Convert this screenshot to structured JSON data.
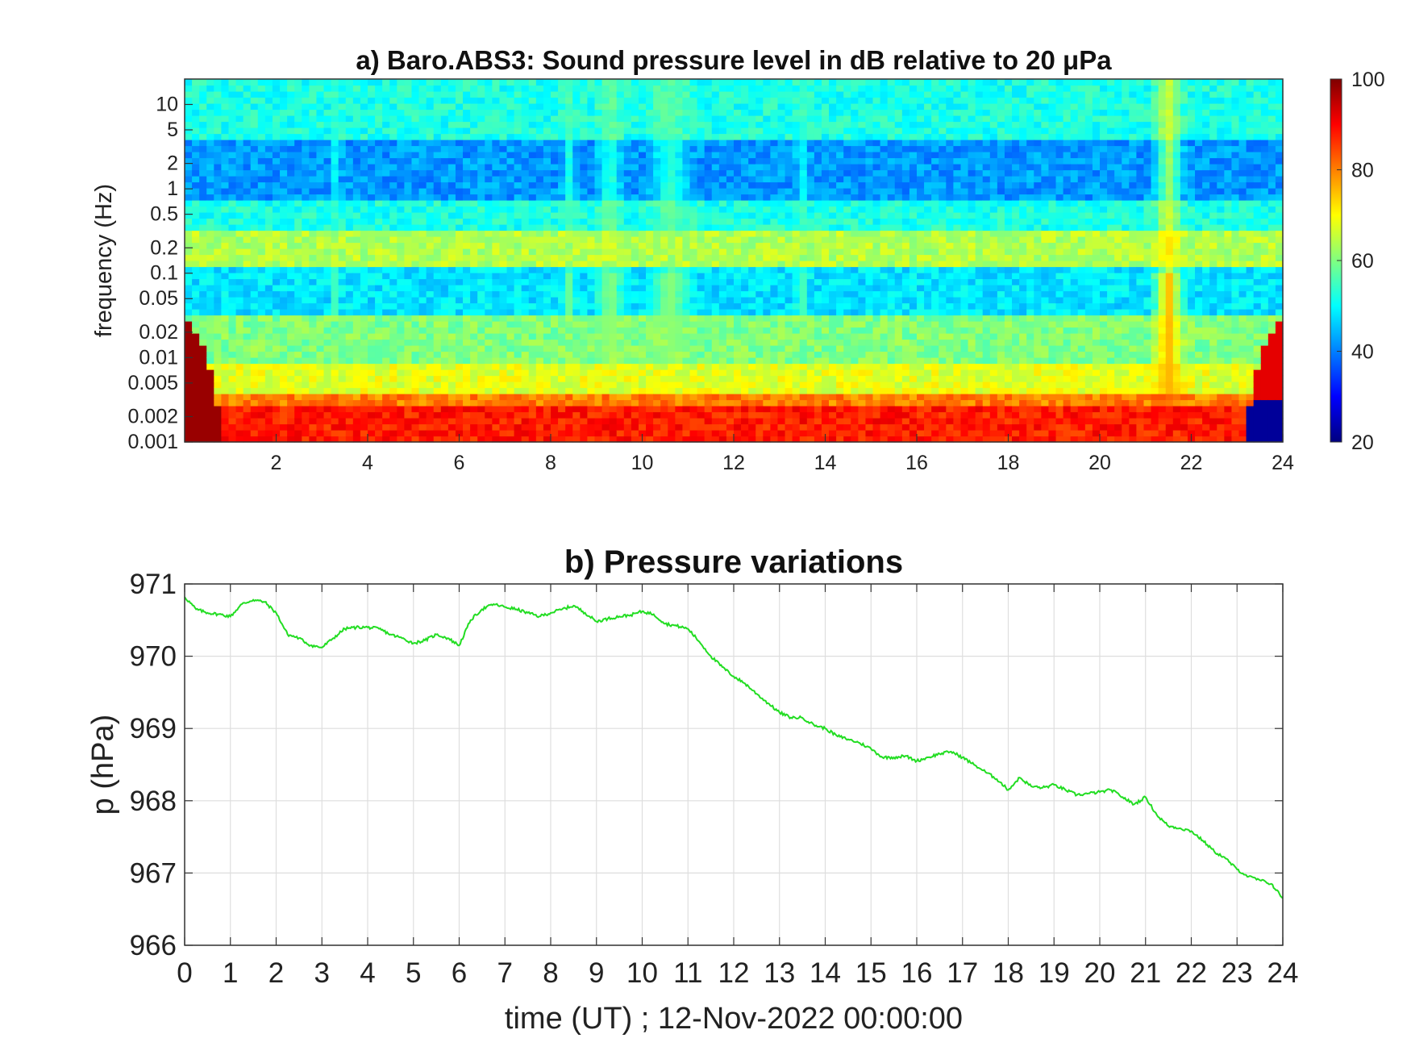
{
  "figure": {
    "panel_a": {
      "title": "a) Baro.ABS3: Sound pressure level in dB relative to 20 μPa",
      "ylabel": "frequency (Hz)"
    },
    "panel_b": {
      "title": "b) Pressure variations",
      "ylabel": "p (hPa)",
      "xlabel": "time (UT) ; 12-Nov-2022 00:00:00"
    }
  },
  "chart_data": [
    {
      "type": "heatmap",
      "title": "a) Baro.ABS3: Sound pressure level in dB relative to 20 μPa",
      "xlabel": "",
      "ylabel": "frequency (Hz)",
      "xlim": [
        0,
        24
      ],
      "ylim": [
        0.001,
        20
      ],
      "y_scale": "log",
      "x_ticks": [
        "2",
        "4",
        "6",
        "8",
        "10",
        "12",
        "14",
        "16",
        "18",
        "20",
        "22",
        "24"
      ],
      "y_ticks": [
        "0.001",
        "0.002",
        "0.005",
        "0.01",
        "0.02",
        "0.05",
        "0.1",
        "0.2",
        "0.5",
        "1",
        "2",
        "5",
        "10"
      ],
      "colormap": "jet",
      "colorbar": {
        "min": 20,
        "max": 100,
        "ticks": [
          "20",
          "40",
          "60",
          "80",
          "100"
        ],
        "placement": "right"
      },
      "frequency_bands_db": [
        {
          "fmin": 0.001,
          "fmax": 0.0025,
          "level": 88
        },
        {
          "fmin": 0.0025,
          "fmax": 0.004,
          "level": 80
        },
        {
          "fmin": 0.004,
          "fmax": 0.008,
          "level": 68
        },
        {
          "fmin": 0.008,
          "fmax": 0.03,
          "level": 60
        },
        {
          "fmin": 0.03,
          "fmax": 0.12,
          "level": 48
        },
        {
          "fmin": 0.12,
          "fmax": 0.35,
          "level": 64
        },
        {
          "fmin": 0.35,
          "fmax": 0.7,
          "level": 52
        },
        {
          "fmin": 0.7,
          "fmax": 4,
          "level": 42
        },
        {
          "fmin": 4,
          "fmax": 20,
          "level": 52
        }
      ],
      "events_db": [
        {
          "t": 3.3,
          "width": 0.15,
          "level": 56
        },
        {
          "t": 8.4,
          "width": 0.2,
          "level": 58
        },
        {
          "t": 9.3,
          "width": 0.35,
          "level": 62
        },
        {
          "t": 10.6,
          "width": 0.6,
          "level": 61
        },
        {
          "t": 13.5,
          "width": 0.2,
          "level": 56
        },
        {
          "t": 21.5,
          "width": 0.4,
          "level": 76
        }
      ]
    },
    {
      "type": "line",
      "title": "b) Pressure variations",
      "xlabel": "time (UT) ; 12-Nov-2022 00:00:00",
      "ylabel": "p (hPa)",
      "xlim": [
        0,
        24
      ],
      "ylim": [
        966,
        971
      ],
      "x_ticks": [
        "0",
        "1",
        "2",
        "3",
        "4",
        "5",
        "6",
        "7",
        "8",
        "9",
        "10",
        "11",
        "12",
        "13",
        "14",
        "15",
        "16",
        "17",
        "18",
        "19",
        "20",
        "21",
        "22",
        "23",
        "24"
      ],
      "y_ticks": [
        "966",
        "967",
        "968",
        "969",
        "970",
        "971"
      ],
      "grid": true,
      "line_color": "#22dd22",
      "series": [
        {
          "x": [
            0,
            0.25,
            0.5,
            0.75,
            1,
            1.25,
            1.5,
            1.75,
            2,
            2.25,
            2.5,
            2.75,
            3,
            3.25,
            3.5,
            3.75,
            4,
            4.25,
            4.5,
            4.75,
            5,
            5.25,
            5.5,
            5.75,
            6,
            6.25,
            6.5,
            6.75,
            7,
            7.25,
            7.5,
            7.75,
            8,
            8.25,
            8.5,
            8.75,
            9,
            9.25,
            9.5,
            9.75,
            10,
            10.25,
            10.5,
            10.75,
            11,
            11.25,
            11.5,
            11.75,
            12,
            12.25,
            12.5,
            12.75,
            13,
            13.25,
            13.5,
            13.75,
            14,
            14.25,
            14.5,
            14.75,
            15,
            15.25,
            15.5,
            15.75,
            16,
            16.25,
            16.5,
            16.75,
            17,
            17.25,
            17.5,
            17.75,
            18,
            18.25,
            18.5,
            18.75,
            19,
            19.25,
            19.5,
            19.75,
            20,
            20.25,
            20.5,
            20.75,
            21,
            21.25,
            21.5,
            21.75,
            22,
            22.25,
            22.5,
            22.75,
            23,
            23.25,
            23.5,
            23.75,
            24
          ],
          "values": [
            970.82,
            970.65,
            970.6,
            970.58,
            970.55,
            970.72,
            970.78,
            970.75,
            970.6,
            970.3,
            970.25,
            970.15,
            970.12,
            970.25,
            970.38,
            970.4,
            970.4,
            970.38,
            970.3,
            970.25,
            970.18,
            970.22,
            970.3,
            970.25,
            970.15,
            970.5,
            970.65,
            970.72,
            970.68,
            970.65,
            970.6,
            970.55,
            970.6,
            970.65,
            970.7,
            970.6,
            970.48,
            970.52,
            970.55,
            970.57,
            970.62,
            970.58,
            970.45,
            970.42,
            970.38,
            970.2,
            970.0,
            969.85,
            969.72,
            969.62,
            969.48,
            969.35,
            969.22,
            969.15,
            969.15,
            969.05,
            969.0,
            968.9,
            968.85,
            968.8,
            968.72,
            968.6,
            968.6,
            968.62,
            968.55,
            968.6,
            968.65,
            968.68,
            968.6,
            968.5,
            968.4,
            968.3,
            968.15,
            968.32,
            968.2,
            968.18,
            968.22,
            968.15,
            968.08,
            968.1,
            968.12,
            968.15,
            968.05,
            967.95,
            968.05,
            967.8,
            967.65,
            967.62,
            967.58,
            967.45,
            967.3,
            967.2,
            967.05,
            966.95,
            966.9,
            966.85,
            966.65
          ]
        }
      ]
    }
  ]
}
